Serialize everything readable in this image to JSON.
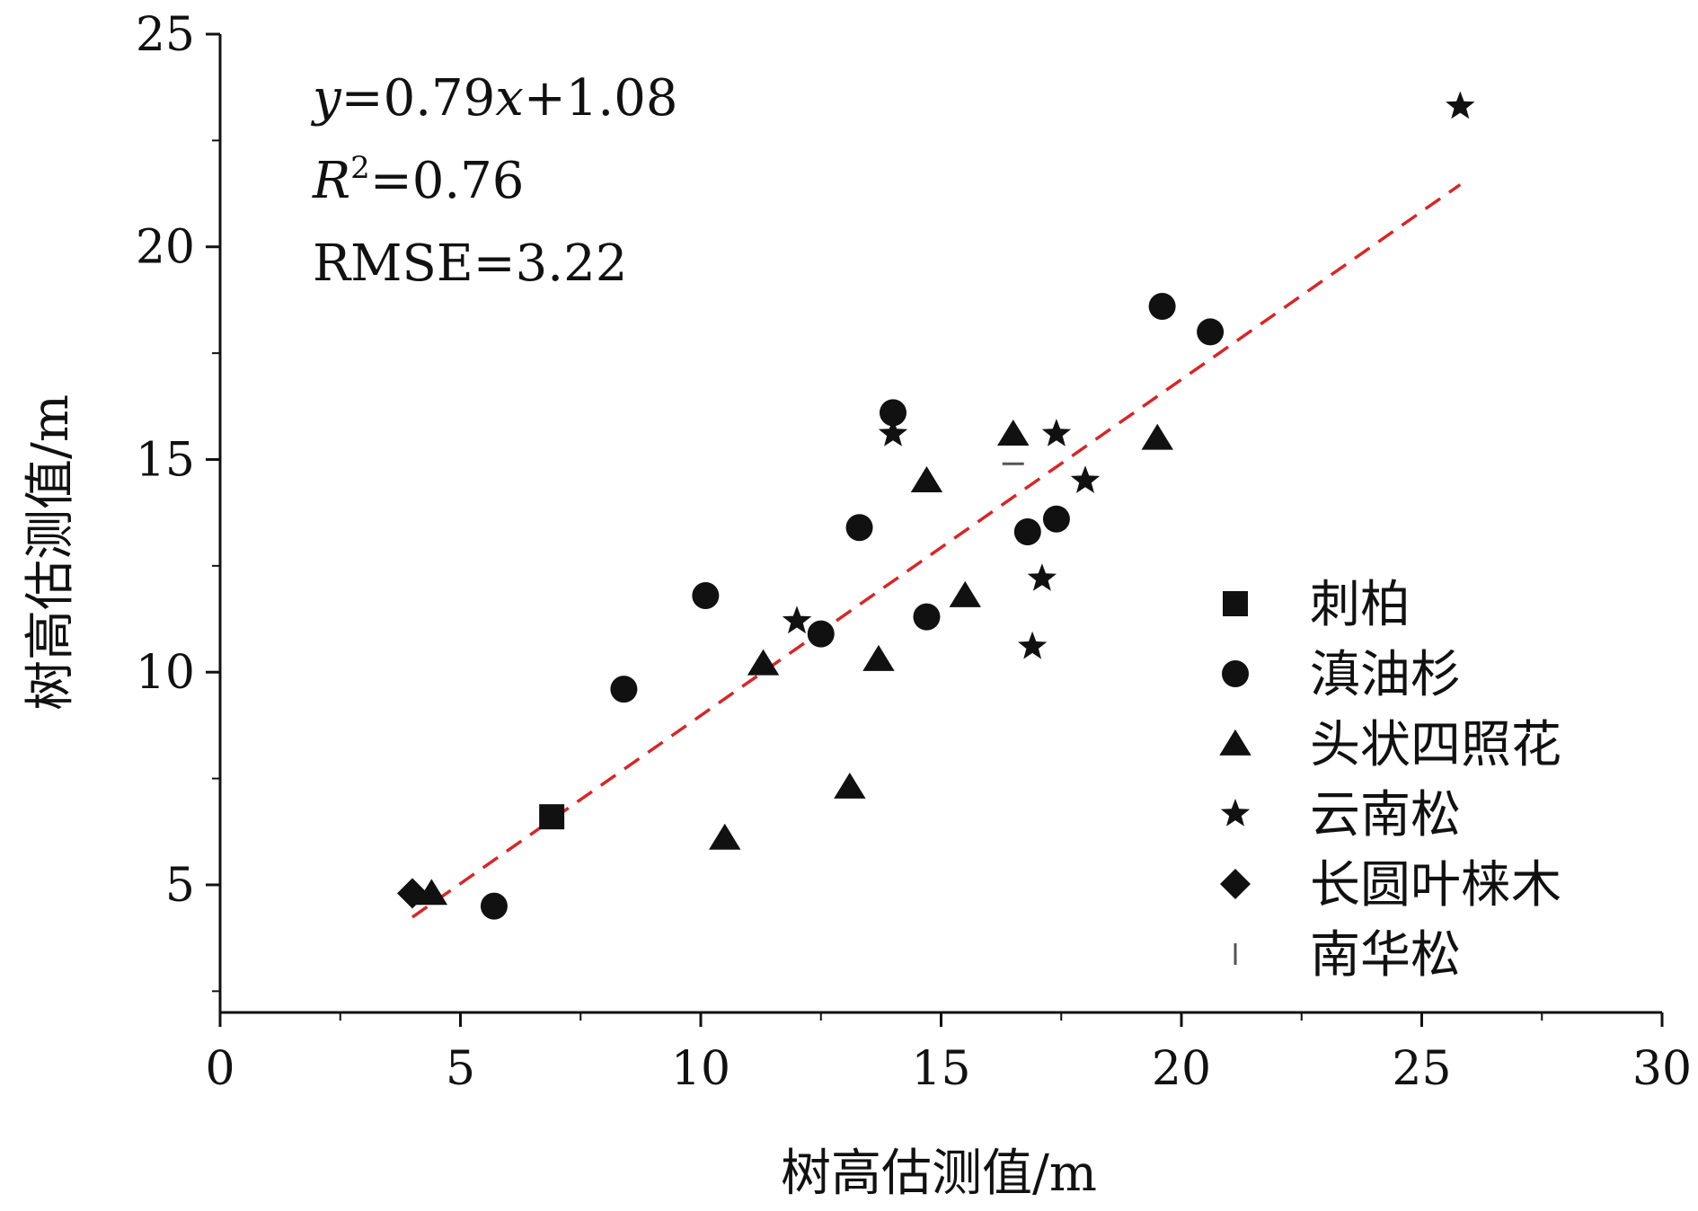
{
  "chart_data": {
    "type": "scatter",
    "xlabel": "树高估测值/m",
    "ylabel": "树高估测值/m",
    "xlim": [
      0,
      30
    ],
    "ylim": [
      2,
      25
    ],
    "xticks": [
      0,
      5,
      10,
      15,
      20,
      25,
      30
    ],
    "yticks": [
      5,
      10,
      15,
      20,
      25
    ],
    "x_tick_labels": [
      "0",
      "5",
      "10",
      "15",
      "20",
      "25",
      "30"
    ],
    "y_tick_labels": [
      "5",
      "10",
      "15",
      "20",
      "25"
    ],
    "grid": false,
    "legend_position": "bottom-right",
    "annotations": {
      "equation": {
        "y": "y",
        "eq_mid": "=0.79",
        "x": "x",
        "eq_end": "+1.08"
      },
      "r2": {
        "r": "R",
        "sup": "2",
        "rest": "=0.76"
      },
      "rmse": "RMSE=3.22"
    },
    "fit_line": {
      "slope": 0.79,
      "intercept": 1.08,
      "x_range": [
        4,
        25.8
      ],
      "color": "#d62728",
      "style": "dashed"
    },
    "series": [
      {
        "name": "刺柏",
        "marker": "square",
        "color": "#111111",
        "points": [
          [
            6.9,
            6.6
          ]
        ]
      },
      {
        "name": "滇油杉",
        "marker": "circle",
        "color": "#111111",
        "points": [
          [
            5.7,
            4.5
          ],
          [
            8.4,
            9.6
          ],
          [
            10.1,
            11.8
          ],
          [
            12.5,
            10.9
          ],
          [
            13.3,
            13.4
          ],
          [
            14.0,
            16.1
          ],
          [
            14.7,
            11.3
          ],
          [
            16.8,
            13.3
          ],
          [
            17.4,
            13.6
          ],
          [
            19.6,
            18.6
          ],
          [
            20.6,
            18.0
          ]
        ]
      },
      {
        "name": "头状四照花",
        "marker": "triangle",
        "color": "#111111",
        "points": [
          [
            4.4,
            4.8
          ],
          [
            10.5,
            6.1
          ],
          [
            11.3,
            10.2
          ],
          [
            13.1,
            7.3
          ],
          [
            13.7,
            10.3
          ],
          [
            14.7,
            14.5
          ],
          [
            15.5,
            11.8
          ],
          [
            16.5,
            15.6
          ],
          [
            19.5,
            15.5
          ]
        ]
      },
      {
        "name": "云南松",
        "marker": "star",
        "color": "#111111",
        "points": [
          [
            12.0,
            11.2
          ],
          [
            14.0,
            15.6
          ],
          [
            16.9,
            10.6
          ],
          [
            17.1,
            12.2
          ],
          [
            17.4,
            15.6
          ],
          [
            18.0,
            14.5
          ],
          [
            25.8,
            23.3
          ]
        ]
      },
      {
        "name": "长圆叶梾木",
        "marker": "diamond",
        "color": "#111111",
        "points": [
          [
            4.0,
            4.8
          ]
        ]
      },
      {
        "name": "南华松",
        "marker": "dash",
        "color": "#555555",
        "points": [
          [
            16.5,
            14.9
          ]
        ]
      }
    ]
  }
}
